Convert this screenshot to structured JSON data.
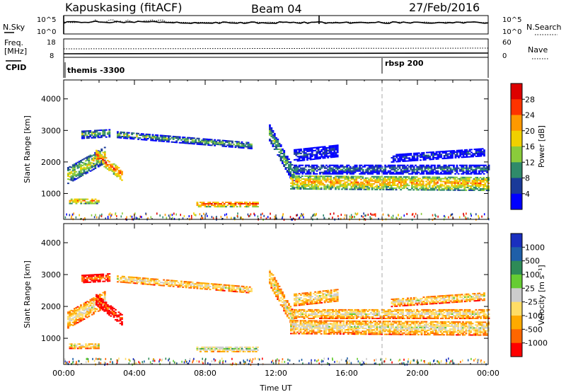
{
  "header": {
    "station": "Kapuskasing (fitACF)",
    "beam": "Beam 04",
    "date": "27/Feb/2016"
  },
  "top_panels": {
    "nsky_label": "N.Sky",
    "nsky_ticks": [
      "10^5",
      "10^0"
    ],
    "nsearch_label": "N.Search",
    "nsearch_ticks": [
      "10^5",
      "10^0"
    ],
    "freq_label": "Freq.",
    "freq_unit": "[MHz]",
    "freq_ticks": [
      "18",
      "8"
    ],
    "nave_label": "Nave",
    "nave_ticks": [
      "60",
      "0"
    ],
    "cpid_label": "CPID",
    "cpid_events": [
      {
        "time_hours": 0.0,
        "label": "themis -3300"
      },
      {
        "time_hours": 18.0,
        "label": "rbsp 200"
      }
    ]
  },
  "chart_data": [
    {
      "type": "heatmap",
      "name": "power",
      "xlabel": "",
      "ylabel": "Slant Range [km]",
      "xlim": [
        0,
        24
      ],
      "ylim": [
        180,
        4600
      ],
      "yticks": [
        "1000",
        "2000",
        "3000",
        "4000"
      ],
      "colorbar": {
        "label": "Power [dB]",
        "ticks": [
          "28",
          "24",
          "20",
          "16",
          "12",
          "8",
          "4"
        ],
        "colors": [
          "#0000ff",
          "#1a3a99",
          "#2f8a6a",
          "#8acb3b",
          "#f0d000",
          "#ff9900",
          "#ff3300",
          "#dd0000"
        ]
      },
      "echo_regions": [
        {
          "t0": 0.2,
          "t1": 2.3,
          "r_center_start": 1550,
          "r_center_end": 2200,
          "width": 500,
          "level": 4
        },
        {
          "t0": 1.8,
          "t1": 3.3,
          "r_center_start": 2200,
          "r_center_end": 1550,
          "width": 350,
          "level": 6
        },
        {
          "t0": 0.3,
          "t1": 2.0,
          "r_center_start": 750,
          "r_center_end": 750,
          "width": 180,
          "level": 5
        },
        {
          "t0": 1.0,
          "t1": 2.6,
          "r_center_start": 2850,
          "r_center_end": 2900,
          "width": 250,
          "level": 3
        },
        {
          "t0": 3.0,
          "t1": 10.6,
          "r_center_start": 2850,
          "r_center_end": 2500,
          "width": 200,
          "level": 3
        },
        {
          "t0": 7.5,
          "t1": 11.0,
          "r_center_start": 650,
          "r_center_end": 650,
          "width": 180,
          "level": 6
        },
        {
          "t0": 11.6,
          "t1": 13.0,
          "r_center_start": 2900,
          "r_center_end": 1500,
          "width": 500,
          "level": 3
        },
        {
          "t0": 12.8,
          "t1": 24.0,
          "r_center_start": 1350,
          "r_center_end": 1300,
          "width": 450,
          "level": 5
        },
        {
          "t0": 13.0,
          "t1": 24.0,
          "r_center_start": 1750,
          "r_center_end": 1750,
          "width": 300,
          "level": 2
        },
        {
          "t0": 13.0,
          "t1": 15.5,
          "r_center_start": 2200,
          "r_center_end": 2350,
          "width": 400,
          "level": 1
        },
        {
          "t0": 18.5,
          "t1": 23.8,
          "r_center_start": 2100,
          "r_center_end": 2300,
          "width": 250,
          "level": 1
        }
      ]
    },
    {
      "type": "heatmap",
      "name": "velocity",
      "xlabel": "Time UT",
      "ylabel": "Slant Range [km]",
      "xlim": [
        0,
        24
      ],
      "ylim": [
        180,
        4600
      ],
      "xticks": [
        "00:00",
        "04:00",
        "08:00",
        "12:00",
        "16:00",
        "20:00",
        "00:00"
      ],
      "yticks": [
        "1000",
        "2000",
        "3000",
        "4000"
      ],
      "colorbar": {
        "label": "Velocity [m s⁻¹]",
        "ticks": [
          "1000",
          "500",
          "100",
          "25",
          "-25",
          "-100",
          "-500",
          "-1000"
        ],
        "colors": [
          "#ff0000",
          "#ff6600",
          "#ffaa00",
          "#ffdd66",
          "#cccccc",
          "#66cc33",
          "#2e8b57",
          "#1f5fa8",
          "#1a2fbf"
        ]
      },
      "echo_regions": [
        {
          "t0": 0.2,
          "t1": 2.3,
          "r_center_start": 1550,
          "r_center_end": 2200,
          "width": 500,
          "level": 4
        },
        {
          "t0": 1.8,
          "t1": 3.3,
          "r_center_start": 2200,
          "r_center_end": 1550,
          "width": 350,
          "level": 1
        },
        {
          "t0": 0.3,
          "t1": 2.0,
          "r_center_start": 750,
          "r_center_end": 750,
          "width": 180,
          "level": 4
        },
        {
          "t0": 1.0,
          "t1": 2.6,
          "r_center_start": 2850,
          "r_center_end": 2900,
          "width": 250,
          "level": 2
        },
        {
          "t0": 3.0,
          "t1": 10.6,
          "r_center_start": 2850,
          "r_center_end": 2500,
          "width": 200,
          "level": 4
        },
        {
          "t0": 7.5,
          "t1": 11.0,
          "r_center_start": 650,
          "r_center_end": 650,
          "width": 180,
          "level": 5
        },
        {
          "t0": 11.6,
          "t1": 13.0,
          "r_center_start": 2900,
          "r_center_end": 1500,
          "width": 500,
          "level": 4
        },
        {
          "t0": 12.8,
          "t1": 24.0,
          "r_center_start": 1350,
          "r_center_end": 1300,
          "width": 450,
          "level": 4
        },
        {
          "t0": 13.0,
          "t1": 24.0,
          "r_center_start": 1750,
          "r_center_end": 1750,
          "width": 300,
          "level": 4
        },
        {
          "t0": 13.0,
          "t1": 15.5,
          "r_center_start": 2200,
          "r_center_end": 2350,
          "width": 400,
          "level": 4
        },
        {
          "t0": 18.5,
          "t1": 23.8,
          "r_center_start": 2100,
          "r_center_end": 2300,
          "width": 250,
          "level": 4
        }
      ]
    }
  ]
}
